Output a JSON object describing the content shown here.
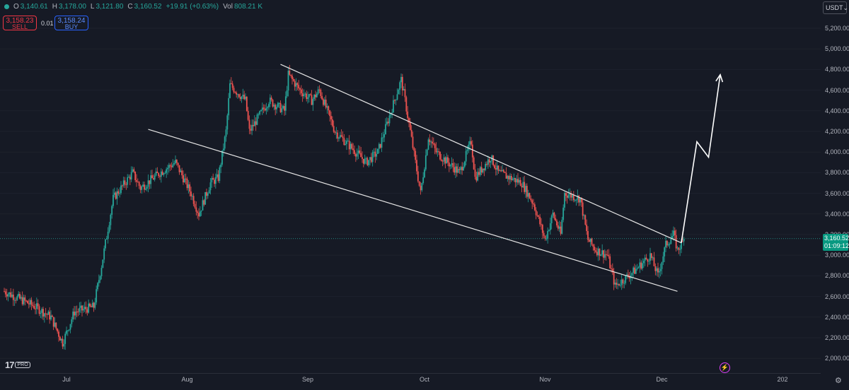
{
  "header": {
    "ohlc": [
      {
        "key": "O",
        "value": "3,140.61"
      },
      {
        "key": "H",
        "value": "3,178.00"
      },
      {
        "key": "L",
        "value": "3,121.80"
      },
      {
        "key": "C",
        "value": "3,160.52"
      }
    ],
    "change": "+19.91 (+0.63%)",
    "vol_label": "Vol",
    "vol_value": "808.21 K"
  },
  "trade": {
    "sell_price": "3,158.23",
    "sell_label": "SELL",
    "spread": "0.01",
    "buy_price": "3,158.24",
    "buy_label": "BUY"
  },
  "currency": "USDT",
  "current_price": {
    "price": "3,160.52",
    "countdown": "01:09:12"
  },
  "logo": {
    "mark": "17",
    "badge": "PRO"
  },
  "colors": {
    "background": "#161a25",
    "up": "#26a69a",
    "down": "#ef5350",
    "sell": "#f23645",
    "buy": "#2962ff",
    "trendline": "#e6e6e6"
  },
  "chart_data": {
    "type": "candlestick",
    "y_axis_labels": [
      "5,200.00",
      "5,000.00",
      "4,800.00",
      "4,600.00",
      "4,400.00",
      "4,200.00",
      "4,000.00",
      "3,800.00",
      "3,600.00",
      "3,400.00",
      "3,200.00",
      "3,000.00",
      "2,800.00",
      "2,600.00",
      "2,400.00",
      "2,200.00",
      "2,000.00"
    ],
    "y_axis_values": [
      5200,
      5000,
      4800,
      4600,
      4400,
      4200,
      4000,
      3800,
      3600,
      3400,
      3200,
      3000,
      2800,
      2600,
      2400,
      2200,
      2000
    ],
    "x_axis_labels": [
      "Jul",
      "Aug",
      "Sep",
      "Oct",
      "Nov",
      "Dec",
      "202"
    ],
    "x_axis_days": [
      16,
      47,
      78,
      108,
      139,
      169,
      200
    ],
    "last_price": 3160.52,
    "series": [
      {
        "name": "close",
        "x_days": [
          0,
          8,
          12,
          15,
          18,
          23,
          25,
          28,
          33,
          35,
          40,
          44,
          48,
          50,
          53,
          55,
          57,
          58,
          62,
          63,
          68,
          72,
          73,
          76,
          79,
          81,
          85,
          93,
          96,
          102,
          103,
          107,
          109,
          111,
          117,
          120,
          121,
          125,
          127,
          133,
          136,
          139,
          141,
          143,
          144,
          148,
          150,
          152,
          155,
          157,
          162,
          166,
          168,
          170,
          172,
          173,
          175
        ],
        "y": [
          2650,
          2500,
          2400,
          2150,
          2450,
          2500,
          2900,
          3550,
          3800,
          3650,
          3800,
          3900,
          3600,
          3400,
          3700,
          3750,
          4200,
          4650,
          4500,
          4200,
          4500,
          4400,
          4750,
          4600,
          4500,
          4600,
          4200,
          3900,
          4000,
          4700,
          4500,
          3600,
          4150,
          4000,
          3800,
          4100,
          3750,
          3950,
          3800,
          3700,
          3500,
          3150,
          3400,
          3200,
          3600,
          3550,
          3150,
          3050,
          3000,
          2700,
          2850,
          3000,
          2800,
          3100,
          3200,
          3050,
          3160
        ]
      }
    ],
    "trendlines": [
      {
        "name": "upper",
        "points": [
          [
            71,
            4850
          ],
          [
            174,
            3120
          ]
        ]
      },
      {
        "name": "lower",
        "points": [
          [
            37,
            4220
          ],
          [
            173,
            2650
          ]
        ]
      }
    ],
    "projection": {
      "points": [
        [
          174,
          3120
        ],
        [
          178,
          4100
        ],
        [
          181,
          3950
        ],
        [
          184,
          4750
        ]
      ]
    }
  }
}
